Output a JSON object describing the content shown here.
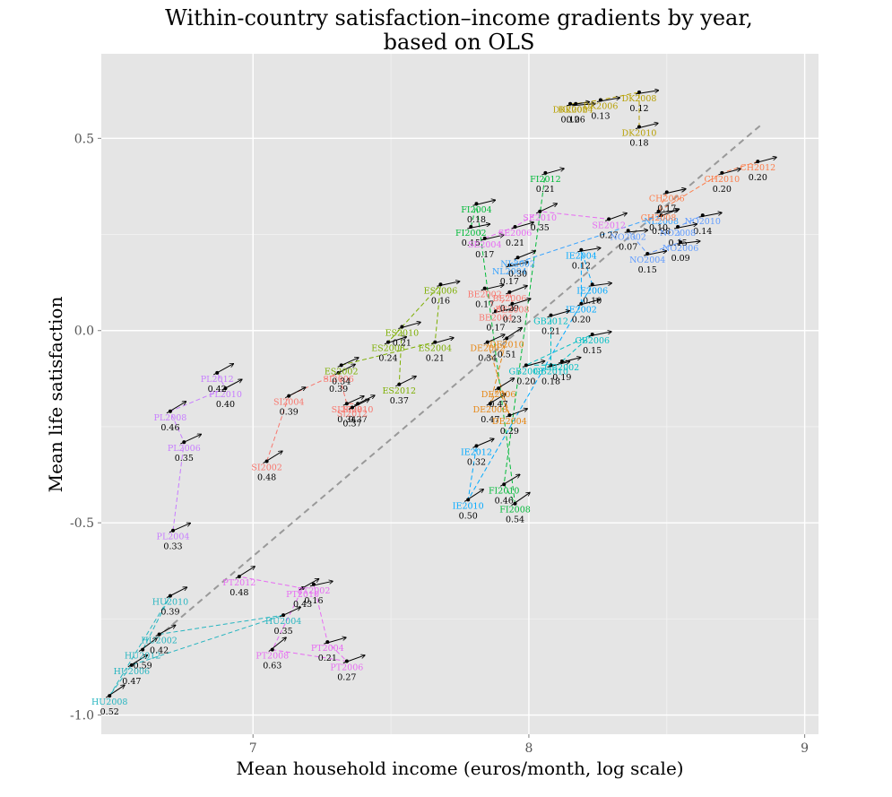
{
  "chart_data": {
    "type": "scatter",
    "title": "Within-country satisfaction–income gradients by year, based on OLS",
    "title_lines": [
      "Within-country satisfaction–income gradients by year,",
      "based on OLS"
    ],
    "xlabel": "Mean household income (euros/month, log scale)",
    "ylabel": "Mean life satisfaction",
    "xlim": [
      6.45,
      9.05
    ],
    "ylim": [
      -1.05,
      0.72
    ],
    "x_ticks": [
      {
        "v": 7,
        "label": "7"
      },
      {
        "v": 8,
        "label": "8"
      },
      {
        "v": 9,
        "label": "9"
      }
    ],
    "y_ticks": [
      {
        "v": 0.5,
        "label": "0.5"
      },
      {
        "v": 0.0,
        "label": "0.0"
      },
      {
        "v": -0.5,
        "label": "-0.5"
      },
      {
        "v": -1.0,
        "label": "-1.0"
      }
    ],
    "grid": true,
    "legend": "none",
    "background_color": "#e5e5e5",
    "fit_line": {
      "x": [
        6.65,
        8.85
      ],
      "y": [
        -0.8,
        0.54
      ],
      "style": "dashed",
      "color": "#999999"
    },
    "series": [
      {
        "name": "HU",
        "color": "#26b5c0",
        "points": [
          {
            "label": "HU2008",
            "x": 6.48,
            "y": -0.95,
            "g": "0.52"
          },
          {
            "label": "HU2006",
            "x": 6.56,
            "y": -0.87,
            "g": "0.47"
          },
          {
            "label": "HU2012",
            "x": 6.6,
            "y": -0.83,
            "g": "0.59"
          },
          {
            "label": "HU2002",
            "x": 6.66,
            "y": -0.79,
            "g": "0.42"
          },
          {
            "label": "HU2004",
            "x": 7.11,
            "y": -0.74,
            "g": "0.35"
          },
          {
            "label": "HU2010",
            "x": 6.7,
            "y": -0.69,
            "g": "0.39"
          }
        ]
      },
      {
        "name": "PL",
        "color": "#c77cff",
        "points": [
          {
            "label": "PL2004",
            "x": 6.71,
            "y": -0.52,
            "g": "0.33"
          },
          {
            "label": "PL2006",
            "x": 6.75,
            "y": -0.29,
            "g": "0.35"
          },
          {
            "label": "PL2008",
            "x": 6.7,
            "y": -0.21,
            "g": "0.46"
          },
          {
            "label": "PL2010",
            "x": 6.9,
            "y": -0.15,
            "g": "0.40"
          },
          {
            "label": "PL2012",
            "x": 6.87,
            "y": -0.11,
            "g": "0.42"
          }
        ]
      },
      {
        "name": "PT",
        "color": "#e76bf3",
        "points": [
          {
            "label": "PT2012",
            "x": 6.95,
            "y": -0.64,
            "g": "0.48"
          },
          {
            "label": "PT2010",
            "x": 7.18,
            "y": -0.67,
            "g": "0.43"
          },
          {
            "label": "PT2002",
            "x": 7.22,
            "y": -0.66,
            "g": "0.16"
          },
          {
            "label": "PT2008",
            "x": 7.07,
            "y": -0.83,
            "g": "0.63"
          },
          {
            "label": "PT2004",
            "x": 7.27,
            "y": -0.81,
            "g": "0.21"
          },
          {
            "label": "PT2006",
            "x": 7.34,
            "y": -0.86,
            "g": "0.27"
          }
        ]
      },
      {
        "name": "SI",
        "color": "#f8766d",
        "points": [
          {
            "label": "SI2002",
            "x": 7.05,
            "y": -0.34,
            "g": "0.48"
          },
          {
            "label": "SI2004",
            "x": 7.13,
            "y": -0.17,
            "g": "0.39"
          },
          {
            "label": "SI2006",
            "x": 7.31,
            "y": -0.11,
            "g": "0.39"
          },
          {
            "label": "SI2008",
            "x": 7.34,
            "y": -0.19,
            "g": "0.34"
          },
          {
            "label": "SI2010",
            "x": 7.38,
            "y": -0.19,
            "g": "0.37"
          },
          {
            "label": "SI2012",
            "x": 7.36,
            "y": -0.2,
            "g": "0.37"
          }
        ]
      },
      {
        "name": "ES",
        "color": "#7cae00",
        "points": [
          {
            "label": "ES2002",
            "x": 7.32,
            "y": -0.09,
            "g": "0.34"
          },
          {
            "label": "ES2008",
            "x": 7.49,
            "y": -0.03,
            "g": "0.24"
          },
          {
            "label": "ES2010",
            "x": 7.54,
            "y": 0.01,
            "g": "0.21"
          },
          {
            "label": "ES2004",
            "x": 7.66,
            "y": -0.03,
            "g": "0.21"
          },
          {
            "label": "ES2006",
            "x": 7.68,
            "y": 0.12,
            "g": "0.16"
          },
          {
            "label": "ES2012",
            "x": 7.53,
            "y": -0.14,
            "g": "0.37"
          }
        ]
      },
      {
        "name": "DE",
        "color": "#e68613",
        "points": [
          {
            "label": "DE2002",
            "x": 7.85,
            "y": -0.03,
            "g": "0.34"
          },
          {
            "label": "DE2008",
            "x": 7.86,
            "y": -0.19,
            "g": "0.47"
          },
          {
            "label": "DE2004",
            "x": 7.93,
            "y": -0.22,
            "g": "0.29"
          },
          {
            "label": "DE2006",
            "x": 7.89,
            "y": -0.15,
            "g": "0.47"
          },
          {
            "label": "DE2010",
            "x": 7.92,
            "y": -0.02,
            "g": "0.51"
          }
        ]
      },
      {
        "name": "BE",
        "color": "#f8766d",
        "points": [
          {
            "label": "BE2002",
            "x": 7.84,
            "y": 0.11,
            "g": "0.17"
          },
          {
            "label": "BE2004",
            "x": 7.88,
            "y": 0.05,
            "g": "0.17"
          },
          {
            "label": "BE2006",
            "x": 7.93,
            "y": 0.1,
            "g": "0.29"
          },
          {
            "label": "BE2008",
            "x": 7.94,
            "y": 0.07,
            "g": "0.23"
          }
        ]
      },
      {
        "name": "IE",
        "color": "#00a9ff",
        "points": [
          {
            "label": "IE2012",
            "x": 7.81,
            "y": -0.3,
            "g": "0.32"
          },
          {
            "label": "IE2010",
            "x": 7.78,
            "y": -0.44,
            "g": "0.50"
          },
          {
            "label": "IE2004",
            "x": 8.19,
            "y": 0.21,
            "g": "0.12"
          },
          {
            "label": "IE2002",
            "x": 8.19,
            "y": 0.07,
            "g": "0.20"
          },
          {
            "label": "IE2006",
            "x": 8.23,
            "y": 0.12,
            "g": "0.10"
          }
        ]
      },
      {
        "name": "GB",
        "color": "#00bfc4",
        "points": [
          {
            "label": "GB2012",
            "x": 8.08,
            "y": 0.04,
            "g": "0.21"
          },
          {
            "label": "GB2006",
            "x": 8.23,
            "y": -0.01,
            "g": "0.15"
          },
          {
            "label": "GB2008",
            "x": 7.99,
            "y": -0.09,
            "g": "0.20"
          },
          {
            "label": "GB2010",
            "x": 8.08,
            "y": -0.09,
            "g": "0.18"
          },
          {
            "label": "GB2002",
            "x": 8.12,
            "y": -0.08,
            "g": "0.19"
          }
        ]
      },
      {
        "name": "FI",
        "color": "#00ba38",
        "points": [
          {
            "label": "FI2002",
            "x": 7.79,
            "y": 0.27,
            "g": "0.15"
          },
          {
            "label": "FI2004",
            "x": 7.81,
            "y": 0.33,
            "g": "0.18"
          },
          {
            "label": "FI2012",
            "x": 8.06,
            "y": 0.41,
            "g": "0.21"
          },
          {
            "label": "FI2010",
            "x": 7.91,
            "y": -0.4,
            "g": "0.46"
          },
          {
            "label": "FI2008",
            "x": 7.95,
            "y": -0.45,
            "g": "0.54"
          }
        ]
      },
      {
        "name": "SE",
        "color": "#e76bf3",
        "points": [
          {
            "label": "SE2004",
            "x": 7.84,
            "y": 0.24,
            "g": "0.17"
          },
          {
            "label": "SE2010",
            "x": 8.04,
            "y": 0.31,
            "g": "0.35"
          },
          {
            "label": "SE2012",
            "x": 8.29,
            "y": 0.29,
            "g": "0.27"
          },
          {
            "label": "SE2006",
            "x": 7.95,
            "y": 0.27,
            "g": "0.21"
          }
        ]
      },
      {
        "name": "NL",
        "color": "#35a2ff",
        "points": [
          {
            "label": "NL2004",
            "x": 7.93,
            "y": 0.17,
            "g": "0.17"
          },
          {
            "label": "NL2002",
            "x": 7.96,
            "y": 0.19,
            "g": "0.30"
          },
          {
            "label": "NL2008",
            "x": 8.48,
            "y": 0.3,
            "g": "0.28"
          }
        ]
      },
      {
        "name": "NO",
        "color": "#619cff",
        "points": [
          {
            "label": "NO2002",
            "x": 8.36,
            "y": 0.26,
            "g": "0.07"
          },
          {
            "label": "NO2004",
            "x": 8.43,
            "y": 0.2,
            "g": "0.15"
          },
          {
            "label": "NO2006",
            "x": 8.55,
            "y": 0.23,
            "g": "0.09"
          },
          {
            "label": "NO2010",
            "x": 8.63,
            "y": 0.3,
            "g": "0.14"
          },
          {
            "label": "NO2008",
            "x": 8.54,
            "y": 0.27,
            "g": "0.15"
          }
        ]
      },
      {
        "name": "CH",
        "color": "#fd7d4a",
        "points": [
          {
            "label": "CH2006",
            "x": 8.5,
            "y": 0.36,
            "g": "0.17"
          },
          {
            "label": "CH2010",
            "x": 8.7,
            "y": 0.41,
            "g": "0.20"
          },
          {
            "label": "CH2012",
            "x": 8.83,
            "y": 0.44,
            "g": "0.20"
          },
          {
            "label": "CH2008",
            "x": 8.47,
            "y": 0.31,
            "g": "0.10"
          }
        ]
      },
      {
        "name": "DK",
        "color": "#b79f00",
        "points": [
          {
            "label": "DK2002",
            "x": 8.15,
            "y": 0.59,
            "g": "0.12"
          },
          {
            "label": "DK2004",
            "x": 8.17,
            "y": 0.59,
            "g": "0.06"
          },
          {
            "label": "DK2006",
            "x": 8.26,
            "y": 0.6,
            "g": "0.13"
          },
          {
            "label": "DK2008",
            "x": 8.4,
            "y": 0.62,
            "g": "0.12"
          },
          {
            "label": "DK2010",
            "x": 8.4,
            "y": 0.53,
            "g": "0.18"
          }
        ]
      }
    ]
  }
}
